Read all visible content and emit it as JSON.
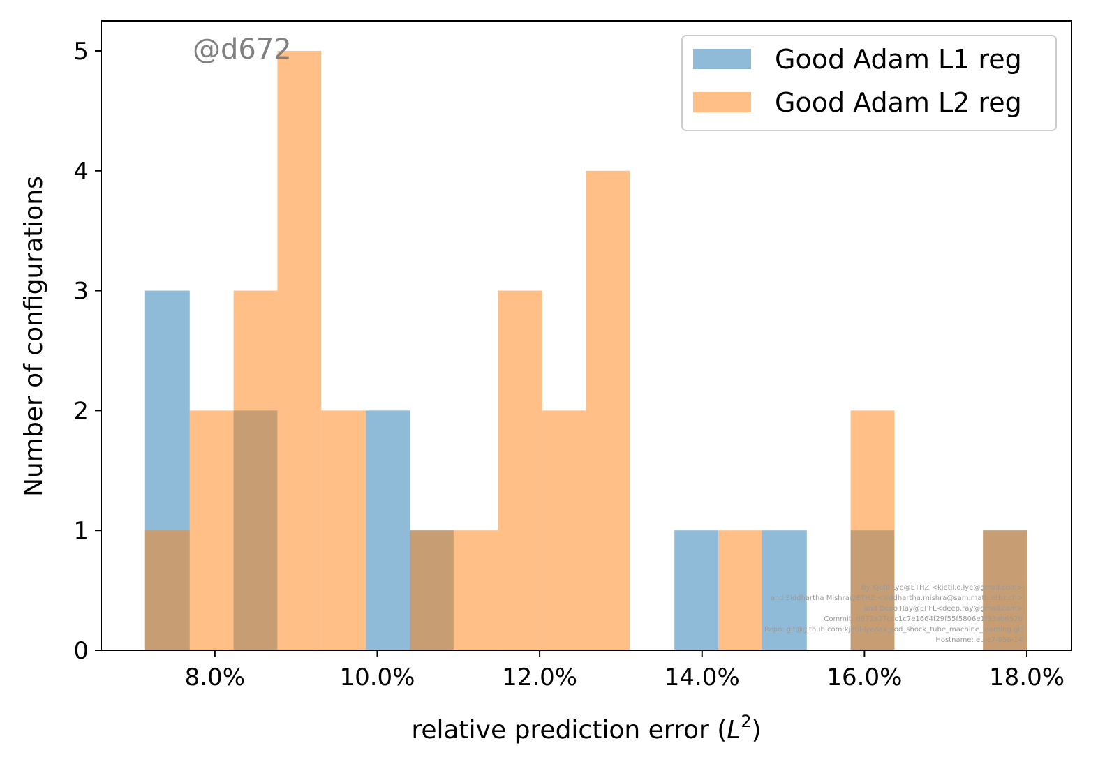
{
  "chart_data": {
    "type": "bar",
    "xlabel": "relative prediction error (",
    "xlabel_math": "L",
    "xlabel_sup": "2",
    "xlabel_close": ")",
    "ylabel": "Number of configurations",
    "xlim": [
      6.6,
      18.55
    ],
    "ylim": [
      0,
      5.25
    ],
    "x_ticks": [
      8,
      10,
      12,
      14,
      16,
      18
    ],
    "x_tick_labels": [
      "8.0%",
      "10.0%",
      "12.0%",
      "14.0%",
      "16.0%",
      "18.0%"
    ],
    "y_ticks": [
      0,
      1,
      2,
      3,
      4,
      5
    ],
    "y_tick_labels": [
      "0",
      "1",
      "2",
      "3",
      "4",
      "5"
    ],
    "legend_position": "upper-right",
    "series": [
      {
        "name": "Good Adam L1 reg",
        "color": "#1f77b4",
        "alpha": 0.5,
        "bins": [
          {
            "x0": 7.14,
            "x1": 7.69,
            "count": 3
          },
          {
            "x0": 8.23,
            "x1": 8.77,
            "count": 2
          },
          {
            "x0": 9.86,
            "x1": 10.4,
            "count": 2
          },
          {
            "x0": 10.4,
            "x1": 10.94,
            "count": 1
          },
          {
            "x0": 13.66,
            "x1": 14.2,
            "count": 1
          },
          {
            "x0": 14.74,
            "x1": 15.29,
            "count": 1
          },
          {
            "x0": 15.83,
            "x1": 16.37,
            "count": 1
          },
          {
            "x0": 17.46,
            "x1": 18.0,
            "count": 1
          }
        ]
      },
      {
        "name": "Good Adam L2 reg",
        "color": "#ff7f0e",
        "alpha": 0.5,
        "bins": [
          {
            "x0": 7.14,
            "x1": 7.69,
            "count": 1
          },
          {
            "x0": 7.69,
            "x1": 8.23,
            "count": 2
          },
          {
            "x0": 8.23,
            "x1": 8.77,
            "count": 3
          },
          {
            "x0": 8.77,
            "x1": 9.31,
            "count": 5
          },
          {
            "x0": 9.31,
            "x1": 9.86,
            "count": 2
          },
          {
            "x0": 10.4,
            "x1": 10.94,
            "count": 1
          },
          {
            "x0": 10.94,
            "x1": 11.49,
            "count": 1
          },
          {
            "x0": 11.49,
            "x1": 12.03,
            "count": 3
          },
          {
            "x0": 12.03,
            "x1": 12.57,
            "count": 2
          },
          {
            "x0": 12.57,
            "x1": 13.11,
            "count": 4
          },
          {
            "x0": 14.2,
            "x1": 14.74,
            "count": 1
          },
          {
            "x0": 15.83,
            "x1": 16.37,
            "count": 2
          },
          {
            "x0": 17.46,
            "x1": 18.0,
            "count": 1
          }
        ]
      }
    ]
  },
  "watermark": "@d672",
  "credits": [
    "By Kjetil Lye@ETHZ <kjetil.o.lye@gmail.com>",
    "and Siddhartha Mishra@ETHZ <siddhartha.mishra@sam.math.ethz.ch>",
    "and Deep Ray@EPFL<deep.ray@gmail.com>",
    "Commit: d672a27ccc1c7e1664f29f55f5806e1f93ab652b",
    "Repo: git@github.com:kjetil-lye/lax_sod_shock_tube_machine_learning.git",
    "Hostname: eu-c7-056-14"
  ]
}
